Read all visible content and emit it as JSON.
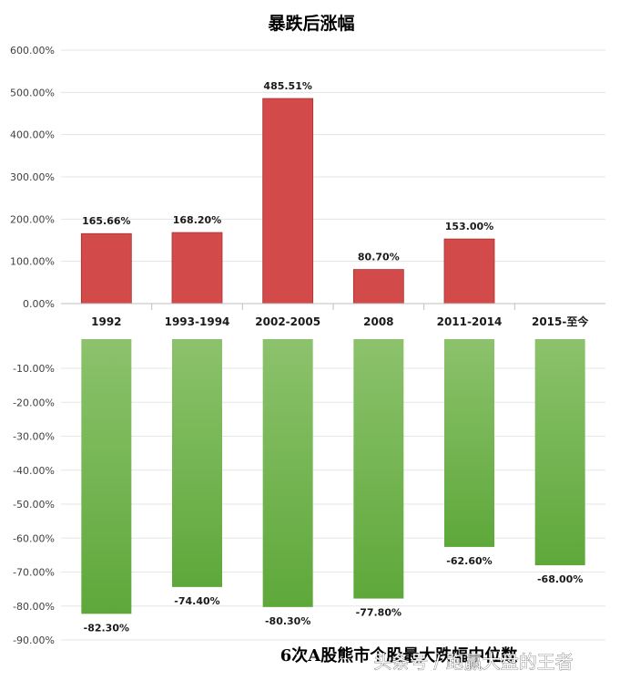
{
  "chart_data": [
    {
      "type": "bar",
      "title": "暴跌后涨幅",
      "categories": [
        "1992",
        "1993-1994",
        "2002-2005",
        "2008",
        "2011-2014",
        "2015-至今"
      ],
      "series": [
        {
          "values": [
            165.66,
            168.2,
            485.51,
            80.7,
            153.0,
            0
          ],
          "data_labels": [
            "165.66%",
            "168.20%",
            "485.51%",
            "80.70%",
            "153.00%",
            ""
          ]
        }
      ],
      "ylim": [
        0,
        600
      ],
      "yticks": [
        "0.00%",
        "100.00%",
        "200.00%",
        "300.00%",
        "400.00%",
        "500.00%",
        "600.00%"
      ],
      "grid": true,
      "bar_color": "#d24a4a"
    },
    {
      "type": "bar",
      "title": "6次A股熊市个股最大跌幅中位数",
      "categories": [
        "1992",
        "1993-1994",
        "2002-2005",
        "2008",
        "2011-2014",
        "2015-至今"
      ],
      "series": [
        {
          "values": [
            -82.3,
            -74.4,
            -80.3,
            -77.8,
            -62.6,
            -68.0
          ],
          "data_labels": [
            "-82.30%",
            "-74.40%",
            "-80.30%",
            "-77.80%",
            "-62.60%",
            "-68.00%"
          ]
        }
      ],
      "ylim": [
        -90,
        -10
      ],
      "yticks": [
        "-10.00%",
        "-20.00%",
        "-30.00%",
        "-40.00%",
        "-50.00%",
        "-60.00%",
        "-70.00%",
        "-80.00%",
        "-90.00%"
      ],
      "grid": true,
      "bar_color": "#6ab04c"
    }
  ],
  "watermark": "头条号 / 跑赢大盘的王者"
}
